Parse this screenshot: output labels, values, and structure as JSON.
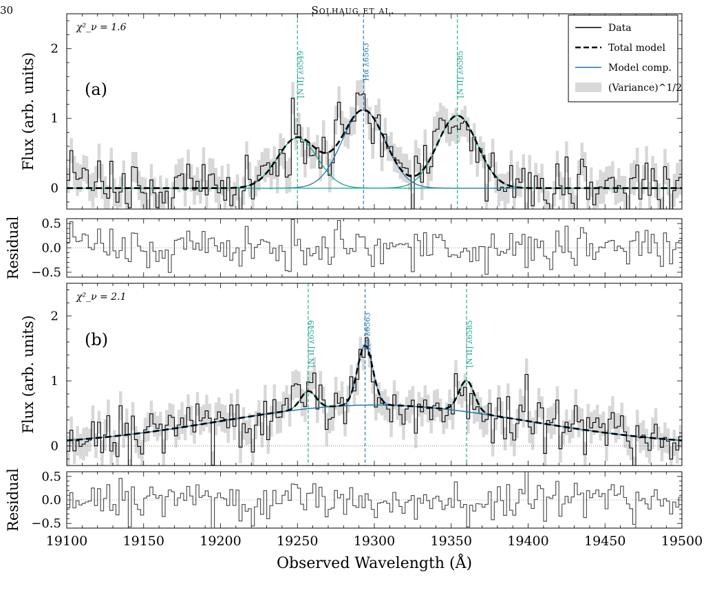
{
  "header": {
    "page_number": "30",
    "running_head": "Solhaug et al."
  },
  "figure": {
    "xlabel": "Observed Wavelength (Å)",
    "flux_ylabel": "Flux (arb. units)",
    "residual_ylabel": "Residual",
    "x_ticks": [
      19100,
      19150,
      19200,
      19250,
      19300,
      19350,
      19400,
      19450,
      19500
    ],
    "flux_yticks": [
      "0",
      "1",
      "2"
    ],
    "residual_yticks": [
      "0.5",
      "0.0",
      "−0.5"
    ],
    "legend": [
      "Data",
      "Total model",
      "Model comp.",
      "(Variance)^1/2"
    ],
    "line_labels": [
      "[N II] λ6549",
      "Hα λ6563",
      "[N II] λ6585"
    ]
  },
  "colors": {
    "halpha": "#1f77b4",
    "nii": "#17a589",
    "total": "#000000",
    "variance": "#d8d8d8"
  },
  "chart_data": [
    {
      "type": "line",
      "panel": "a",
      "panel_label": "(a)",
      "chi2_label": "χ²_ν = 1.6",
      "xlim": [
        19100,
        19500
      ],
      "ylim": [
        -0.3,
        2.5
      ],
      "residual_ylim": [
        -0.6,
        0.6
      ],
      "continuum": {
        "amplitude": 0.0,
        "center": 19300,
        "sigma": 100
      },
      "components": [
        {
          "name": "[N II] λ6549",
          "center": 19250,
          "amplitude": 0.72,
          "sigma": 13
        },
        {
          "name": "Hα λ6563",
          "center": 19293,
          "amplitude": 1.12,
          "sigma": 14
        },
        {
          "name": "[N II] λ6585",
          "center": 19354,
          "amplitude": 1.04,
          "sigma": 13
        }
      ]
    },
    {
      "type": "line",
      "panel": "b",
      "panel_label": "(b)",
      "chi2_label": "χ²_ν = 2.1",
      "xlim": [
        19100,
        19500
      ],
      "ylim": [
        -0.3,
        2.5
      ],
      "residual_ylim": [
        -0.6,
        0.6
      ],
      "continuum": {
        "amplitude": 0.63,
        "center": 19300,
        "sigma": 100
      },
      "components": [
        {
          "name": "[N II] λ6549",
          "center": 19257,
          "amplitude": 0.27,
          "sigma": 5
        },
        {
          "name": "Hα λ6563",
          "center": 19294,
          "amplitude": 0.92,
          "sigma": 5
        },
        {
          "name": "[N II] λ6585",
          "center": 19360,
          "amplitude": 0.48,
          "sigma": 5
        }
      ]
    }
  ]
}
